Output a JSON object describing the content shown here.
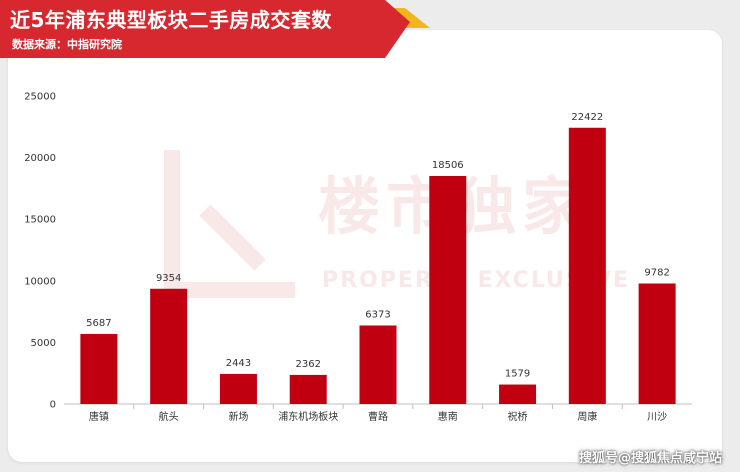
{
  "header": {
    "title": "近5年浦东典型板块二手房成交套数",
    "source": "数据来源：中指研究院"
  },
  "watermark": {
    "logo_text": "楼市独家",
    "logo_subtext": "PROPERTY EXCLUSIVE"
  },
  "footer": {
    "attribution": "搜狐号@搜狐焦点咸宁站"
  },
  "colors": {
    "banner_red": "#d6282e",
    "banner_accent": "#f2b51b",
    "bar": "#c00010"
  },
  "chart_data": {
    "type": "bar",
    "categories": [
      "唐镇",
      "航头",
      "新场",
      "浦东机场板块",
      "曹路",
      "惠南",
      "祝桥",
      "周康",
      "川沙"
    ],
    "values": [
      5687,
      9354,
      2443,
      2362,
      6373,
      18506,
      1579,
      22422,
      9782
    ],
    "data_labels": [
      "5687",
      "9354",
      "2443",
      "2362",
      "6373",
      "18506",
      "1579",
      "22422",
      "9782"
    ],
    "title": "近5年浦东典型板块二手房成交套数",
    "xlabel": "",
    "ylabel": "",
    "ylim": [
      0,
      25000
    ],
    "yticks": [
      "0",
      "5000",
      "10000",
      "15000",
      "20000",
      "25000"
    ],
    "grid": false,
    "legend": "none"
  }
}
